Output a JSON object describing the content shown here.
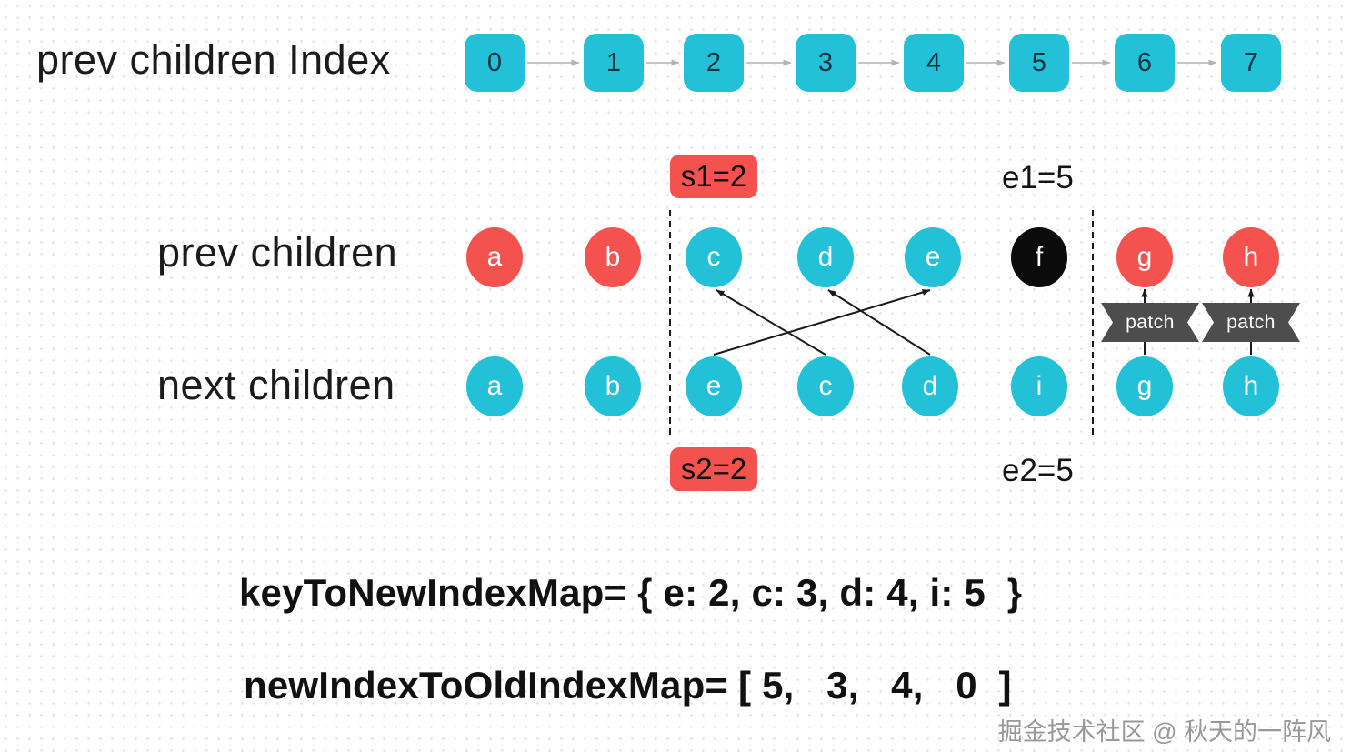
{
  "title_row": {
    "label": "prev children Index",
    "indices": [
      "0",
      "1",
      "2",
      "3",
      "4",
      "5",
      "6",
      "7"
    ]
  },
  "markers": {
    "s1": "s1=2",
    "e1": "e1=5",
    "s2": "s2=2",
    "e2": "e2=5"
  },
  "prev_row": {
    "label": "prev children",
    "nodes": [
      {
        "key": "a",
        "variant": "red"
      },
      {
        "key": "b",
        "variant": "red"
      },
      {
        "key": "c",
        "variant": "cyan"
      },
      {
        "key": "d",
        "variant": "cyan"
      },
      {
        "key": "e",
        "variant": "cyan"
      },
      {
        "key": "f",
        "variant": "black"
      },
      {
        "key": "g",
        "variant": "red"
      },
      {
        "key": "h",
        "variant": "red"
      }
    ]
  },
  "next_row": {
    "label": "next children",
    "nodes": [
      {
        "key": "a",
        "variant": "cyan"
      },
      {
        "key": "b",
        "variant": "cyan"
      },
      {
        "key": "e",
        "variant": "cyan"
      },
      {
        "key": "c",
        "variant": "cyan"
      },
      {
        "key": "d",
        "variant": "cyan"
      },
      {
        "key": "i",
        "variant": "cyan"
      },
      {
        "key": "g",
        "variant": "cyan"
      },
      {
        "key": "h",
        "variant": "cyan"
      }
    ]
  },
  "patch": {
    "label": "patch"
  },
  "edges": {
    "match_arrows": [
      {
        "from_next": "e",
        "to_prev": "e"
      },
      {
        "from_next": "c",
        "to_prev": "c"
      },
      {
        "from_next": "d",
        "to_prev": "d"
      }
    ],
    "patch_arrows": [
      {
        "from_next": "g",
        "to_prev": "g"
      },
      {
        "from_next": "h",
        "to_prev": "h"
      }
    ]
  },
  "formulas": {
    "key_to_new_index_map": "keyToNewIndexMap= { e: 2, c: 3, d: 4, i: 5  }",
    "new_index_to_old_index_map": "newIndexToOldIndexMap= [ 5,   3,   4,   0  ]"
  },
  "watermark": "掘金技术社区 @ 秋天的一阵风",
  "colors": {
    "cyan": "#22c1d8",
    "red": "#f4524f",
    "black": "#0b0b0b",
    "ribbon": "#4d4d4d",
    "badge": "#f4524f",
    "index_arrow": "#b3b3b3",
    "match_arrow": "#1a1a1a"
  }
}
